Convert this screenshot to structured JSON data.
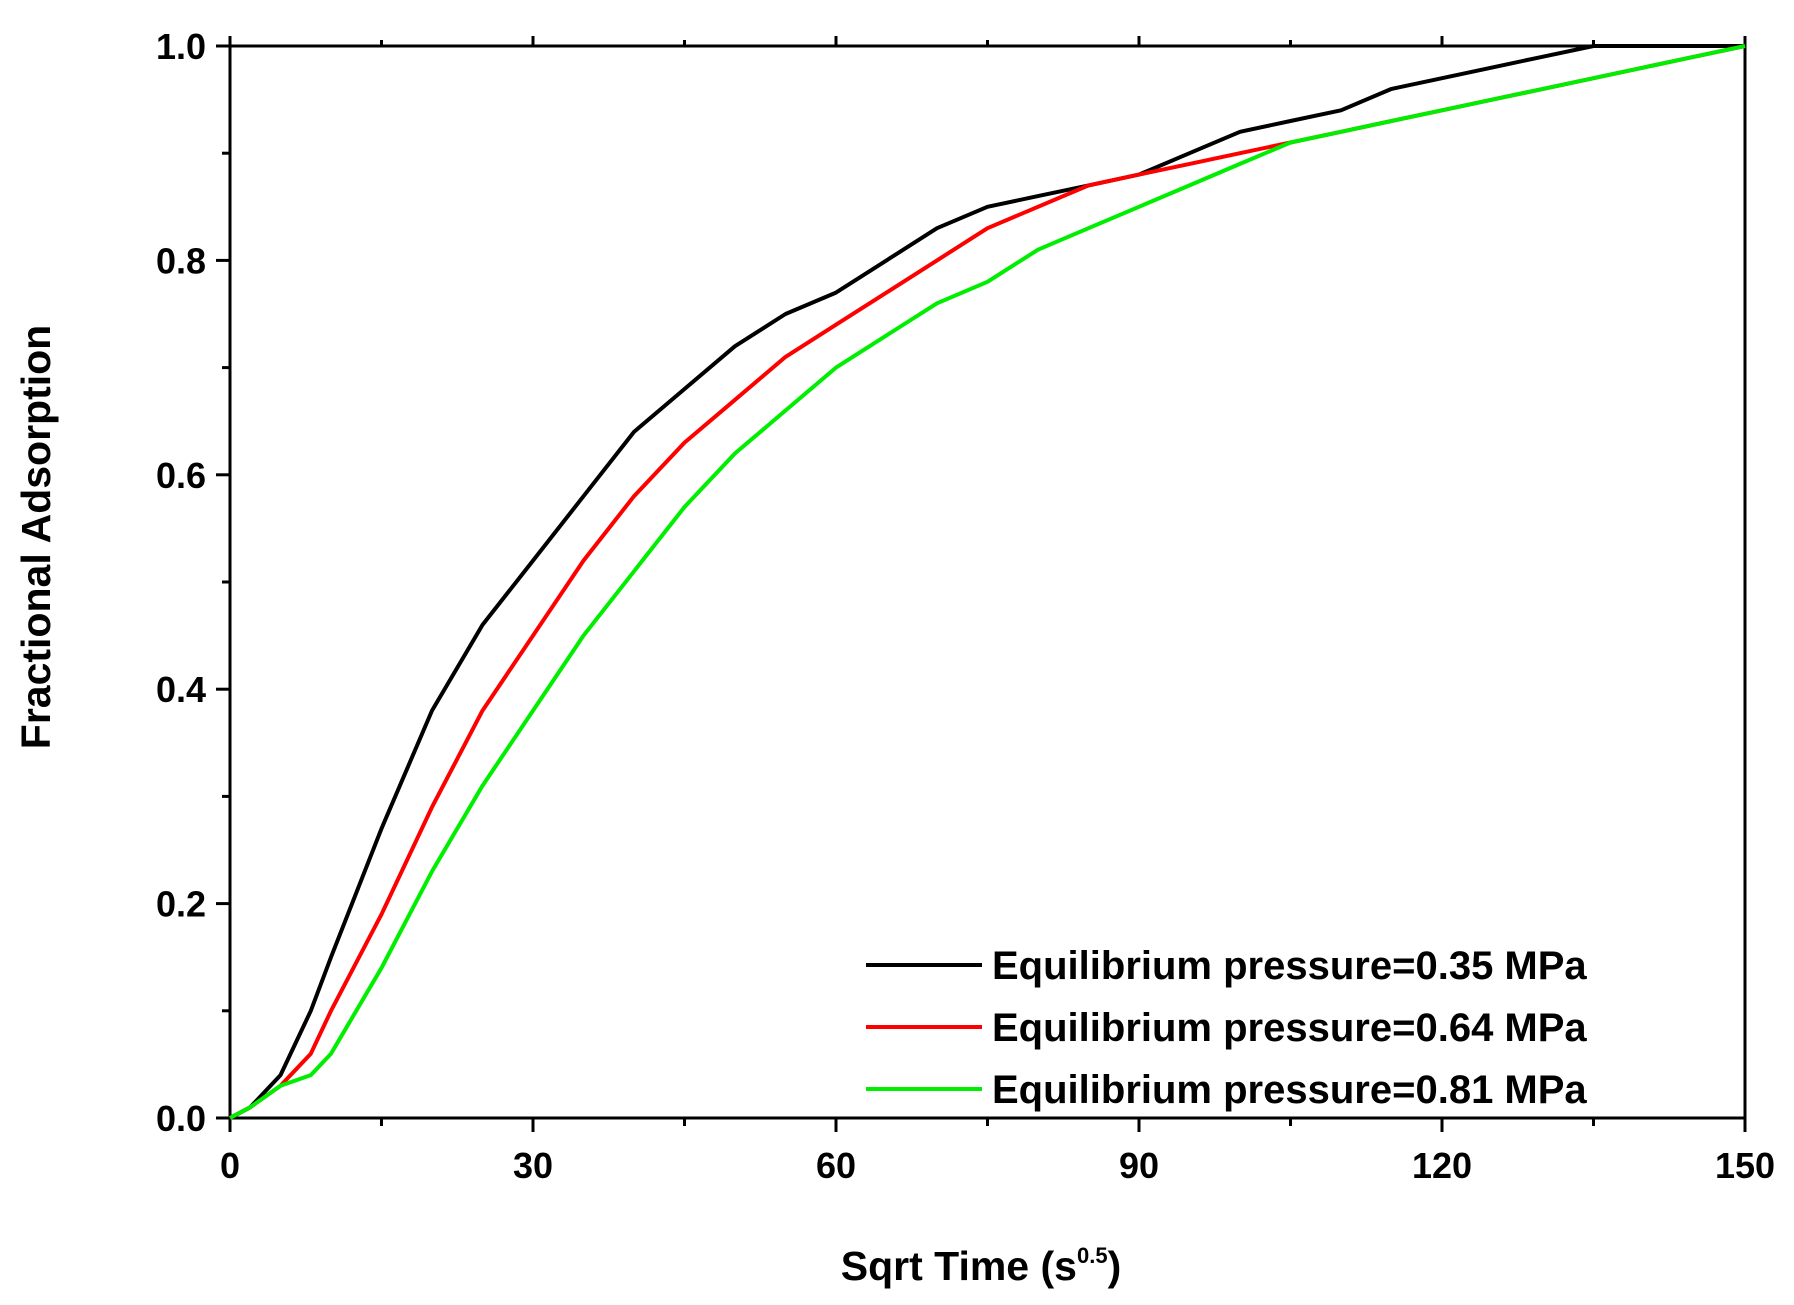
{
  "chart_data": {
    "type": "line",
    "title": "",
    "xlabel_main": "Sqrt Time (s",
    "xlabel_sup": "0.5",
    "xlabel_end": ")",
    "ylabel": "Fractional Adsorption",
    "xlim": [
      0,
      150
    ],
    "ylim": [
      0,
      1.0
    ],
    "x_major_ticks": [
      0,
      30,
      60,
      90,
      120,
      150
    ],
    "x_tick_labels": [
      "0",
      "30",
      "60",
      "90",
      "120",
      "150"
    ],
    "y_major_ticks": [
      0,
      0.2,
      0.4,
      0.6,
      0.8,
      1.0
    ],
    "y_tick_labels": [
      "0.0",
      "0.2",
      "0.4",
      "0.6",
      "0.8",
      "1.0"
    ],
    "grid": false,
    "legend_position": "bottom-right",
    "series": [
      {
        "name": "Equilibrium pressure=0.35 MPa",
        "color": "#000000",
        "x": [
          0,
          2,
          5,
          8,
          10,
          15,
          20,
          25,
          30,
          35,
          40,
          45,
          50,
          55,
          60,
          65,
          70,
          75,
          80,
          85,
          90,
          95,
          100,
          105,
          110,
          115,
          120,
          125,
          130,
          135,
          140,
          145,
          150
        ],
        "y": [
          0,
          0.01,
          0.04,
          0.1,
          0.15,
          0.27,
          0.38,
          0.46,
          0.52,
          0.58,
          0.64,
          0.68,
          0.72,
          0.75,
          0.77,
          0.8,
          0.83,
          0.85,
          0.86,
          0.87,
          0.88,
          0.9,
          0.92,
          0.93,
          0.94,
          0.96,
          0.97,
          0.98,
          0.99,
          1.0,
          1.0,
          1.0,
          1.0
        ]
      },
      {
        "name": "Equilibrium pressure=0.64 MPa",
        "color": "#ff0000",
        "x": [
          0,
          2,
          5,
          8,
          10,
          15,
          20,
          25,
          30,
          35,
          40,
          45,
          50,
          55,
          60,
          65,
          70,
          75,
          80,
          85,
          90,
          95,
          100,
          105,
          110,
          115,
          120,
          125,
          130,
          135,
          140,
          145,
          150
        ],
        "y": [
          0,
          0.01,
          0.03,
          0.06,
          0.1,
          0.19,
          0.29,
          0.38,
          0.45,
          0.52,
          0.58,
          0.63,
          0.67,
          0.71,
          0.74,
          0.77,
          0.8,
          0.83,
          0.85,
          0.87,
          0.88,
          0.89,
          0.9,
          0.91,
          0.92,
          0.93,
          0.94,
          0.95,
          0.96,
          0.97,
          0.98,
          0.99,
          1.0
        ]
      },
      {
        "name": "Equilibrium pressure=0.81 MPa",
        "color": "#00ee00",
        "x": [
          0,
          2,
          5,
          8,
          10,
          15,
          20,
          25,
          30,
          35,
          40,
          45,
          50,
          55,
          60,
          65,
          70,
          75,
          80,
          85,
          90,
          95,
          100,
          105,
          110,
          115,
          120,
          125,
          130,
          135,
          140,
          145,
          150
        ],
        "y": [
          0,
          0.01,
          0.03,
          0.04,
          0.06,
          0.14,
          0.23,
          0.31,
          0.38,
          0.45,
          0.51,
          0.57,
          0.62,
          0.66,
          0.7,
          0.73,
          0.76,
          0.78,
          0.81,
          0.83,
          0.85,
          0.87,
          0.89,
          0.91,
          0.92,
          0.93,
          0.94,
          0.95,
          0.96,
          0.97,
          0.98,
          0.99,
          1.0
        ]
      }
    ]
  }
}
